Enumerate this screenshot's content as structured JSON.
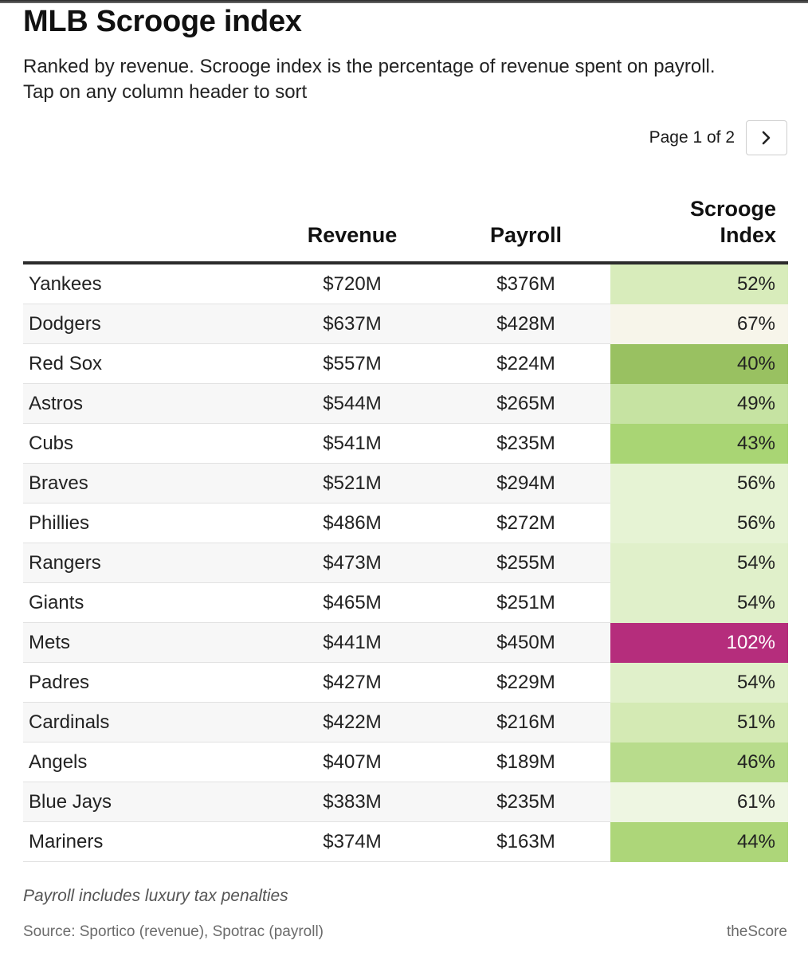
{
  "header": {
    "title": "MLB Scrooge index",
    "subtitle_line1": "Ranked by revenue. Scrooge index is the percentage of revenue spent on payroll.",
    "subtitle_line2": "Tap on any column header to sort"
  },
  "pager": {
    "label": "Page 1 of 2",
    "next_icon": "chevron-right-icon"
  },
  "columns": {
    "team": "",
    "revenue": "Revenue",
    "payroll": "Payroll",
    "index_line1": "Scrooge",
    "index_line2": "Index"
  },
  "chart_data": {
    "type": "table",
    "title": "MLB Scrooge index",
    "columns": [
      "",
      "Revenue",
      "Payroll",
      "Scrooge Index"
    ],
    "rows": [
      {
        "team": "Yankees",
        "revenue": "$720M",
        "payroll": "$376M",
        "index": "52%",
        "index_value": 52,
        "color": "#d8ecbb"
      },
      {
        "team": "Dodgers",
        "revenue": "$637M",
        "payroll": "$428M",
        "index": "67%",
        "index_value": 67,
        "color": "#f7f5ea"
      },
      {
        "team": "Red Sox",
        "revenue": "$557M",
        "payroll": "$224M",
        "index": "40%",
        "index_value": 40,
        "color": "#99c161"
      },
      {
        "team": "Astros",
        "revenue": "$544M",
        "payroll": "$265M",
        "index": "49%",
        "index_value": 49,
        "color": "#c6e3a2"
      },
      {
        "team": "Cubs",
        "revenue": "$541M",
        "payroll": "$235M",
        "index": "43%",
        "index_value": 43,
        "color": "#a9d574"
      },
      {
        "team": "Braves",
        "revenue": "$521M",
        "payroll": "$294M",
        "index": "56%",
        "index_value": 56,
        "color": "#e6f3d4"
      },
      {
        "team": "Phillies",
        "revenue": "$486M",
        "payroll": "$272M",
        "index": "56%",
        "index_value": 56,
        "color": "#e6f3d4"
      },
      {
        "team": "Rangers",
        "revenue": "$473M",
        "payroll": "$255M",
        "index": "54%",
        "index_value": 54,
        "color": "#e0f0ca"
      },
      {
        "team": "Giants",
        "revenue": "$465M",
        "payroll": "$251M",
        "index": "54%",
        "index_value": 54,
        "color": "#e0f0ca"
      },
      {
        "team": "Mets",
        "revenue": "$441M",
        "payroll": "$450M",
        "index": "102%",
        "index_value": 102,
        "color": "#b52d7c"
      },
      {
        "team": "Padres",
        "revenue": "$427M",
        "payroll": "$229M",
        "index": "54%",
        "index_value": 54,
        "color": "#e0f0ca"
      },
      {
        "team": "Cardinals",
        "revenue": "$422M",
        "payroll": "$216M",
        "index": "51%",
        "index_value": 51,
        "color": "#d4eab4"
      },
      {
        "team": "Angels",
        "revenue": "$407M",
        "payroll": "$189M",
        "index": "46%",
        "index_value": 46,
        "color": "#b8dc8c"
      },
      {
        "team": "Blue Jays",
        "revenue": "$383M",
        "payroll": "$235M",
        "index": "61%",
        "index_value": 61,
        "color": "#eef6e2"
      },
      {
        "team": "Mariners",
        "revenue": "$374M",
        "payroll": "$163M",
        "index": "44%",
        "index_value": 44,
        "color": "#add679"
      }
    ]
  },
  "footer": {
    "note": "Payroll includes luxury tax penalties",
    "source": "Source: Sportico (revenue), Spotrac (payroll)",
    "brand": "theScore"
  },
  "colors": {
    "hot_text": "#ffffff",
    "rule": "#2b2b2b"
  }
}
